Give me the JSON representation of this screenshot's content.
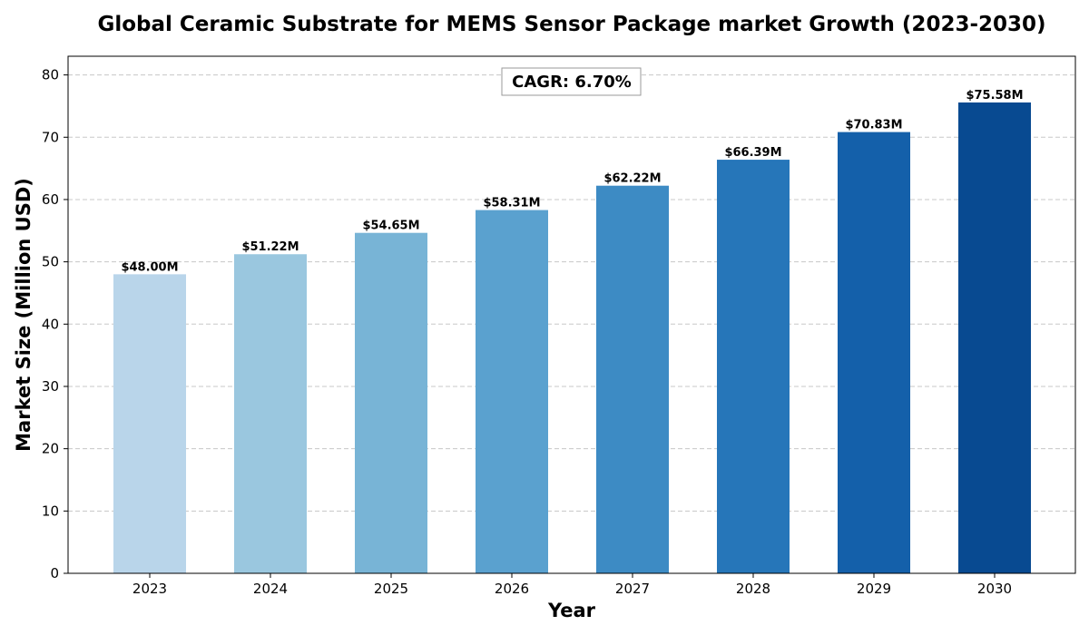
{
  "chart_data": {
    "type": "bar",
    "title": "Global Ceramic Substrate for MEMS Sensor Package market Growth (2023-2030)",
    "xlabel": "Year",
    "ylabel": "Market Size (Million USD)",
    "categories": [
      "2023",
      "2024",
      "2025",
      "2026",
      "2027",
      "2028",
      "2029",
      "2030"
    ],
    "values": [
      48.0,
      51.22,
      54.65,
      58.31,
      62.22,
      66.39,
      70.83,
      75.58
    ],
    "data_labels": [
      "$48.00M",
      "$51.22M",
      "$54.65M",
      "$58.31M",
      "$62.22M",
      "$66.39M",
      "$70.83M",
      "$75.58M"
    ],
    "colors": [
      "#b9d5ea",
      "#9ac7df",
      "#78b4d6",
      "#5aa1cf",
      "#3d8bc4",
      "#2676b9",
      "#1460aa",
      "#084a91"
    ],
    "ylim": [
      0,
      83
    ],
    "yticks": [
      0,
      10,
      20,
      30,
      40,
      50,
      60,
      70,
      80
    ],
    "grid": true,
    "annotation": "CAGR: 6.70%"
  }
}
